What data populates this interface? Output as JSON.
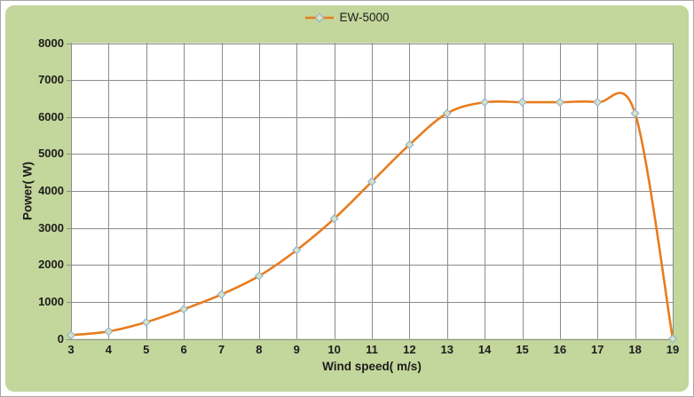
{
  "chart": {
    "legend": {
      "label": "EW-5000",
      "position": "top-center"
    }
  },
  "colors": {
    "chart_background": "#C3D69B",
    "plot_background": "#FFFFFF",
    "gridline": "#8C8C8C",
    "series_line": "#E87C1E",
    "marker_fill": "#D7E4BC",
    "marker_stroke": "#95B3D7",
    "text": "#1C1C1C",
    "frame_border": "#A6A6A6"
  },
  "chart_data": {
    "type": "line",
    "title": "",
    "xlabel": "Wind speed( m/s)",
    "ylabel": "Power( W)",
    "xlim": [
      3,
      19
    ],
    "ylim": [
      0,
      8000
    ],
    "x_ticks": [
      3,
      4,
      5,
      6,
      7,
      8,
      9,
      10,
      11,
      12,
      13,
      14,
      15,
      16,
      17,
      18,
      19
    ],
    "y_ticks": [
      0,
      1000,
      2000,
      3000,
      4000,
      5000,
      6000,
      7000,
      8000
    ],
    "grid": true,
    "legend_position": "top-center",
    "marker": "diamond",
    "line_smooth": true,
    "series": [
      {
        "name": "EW-5000",
        "x": [
          3,
          4,
          5,
          6,
          7,
          8,
          9,
          10,
          11,
          12,
          13,
          14,
          15,
          16,
          17,
          18,
          19
        ],
        "values": [
          100,
          200,
          450,
          800,
          1200,
          1700,
          2400,
          3250,
          4250,
          5250,
          6100,
          6400,
          6400,
          6400,
          6400,
          6100,
          0
        ]
      }
    ]
  }
}
